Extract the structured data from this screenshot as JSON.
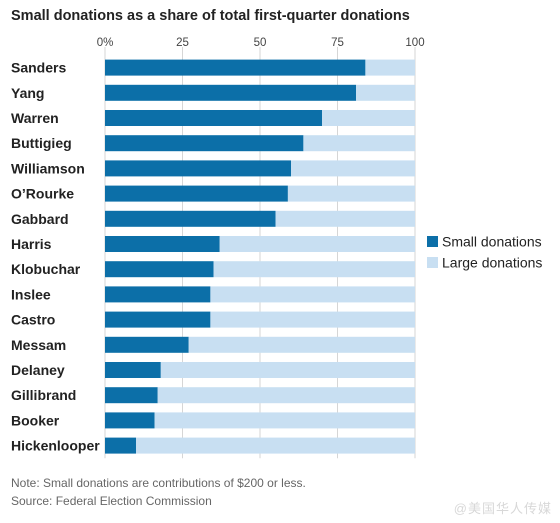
{
  "chart_data": {
    "type": "bar",
    "orientation": "horizontal",
    "stacked": true,
    "title": "Small donations as a share of total first-quarter donations",
    "categories": [
      "Sanders",
      "Yang",
      "Warren",
      "Buttigieg",
      "Williamson",
      "O’Rourke",
      "Gabbard",
      "Harris",
      "Klobuchar",
      "Inslee",
      "Castro",
      "Messam",
      "Delaney",
      "Gillibrand",
      "Booker",
      "Hickenlooper"
    ],
    "series": [
      {
        "name": "Small donations",
        "color": "#0c6fa8",
        "values": [
          84,
          81,
          70,
          64,
          60,
          59,
          55,
          37,
          35,
          34,
          34,
          27,
          18,
          17,
          16,
          10
        ]
      },
      {
        "name": "Large donations",
        "color": "#c8dff2",
        "values": [
          16,
          19,
          30,
          36,
          40,
          41,
          45,
          63,
          65,
          66,
          66,
          73,
          82,
          83,
          84,
          90
        ]
      }
    ],
    "xlim": [
      0,
      100
    ],
    "xticks": [
      "0%",
      "25",
      "50",
      "75",
      "100"
    ],
    "xtick_values": [
      0,
      25,
      50,
      75,
      100
    ],
    "grid": true,
    "legend_position": "right"
  },
  "note": "Note: Small donations are contributions of $200 or less.",
  "source": "Source: Federal Election Commission",
  "watermark": "@美国华人传媒"
}
